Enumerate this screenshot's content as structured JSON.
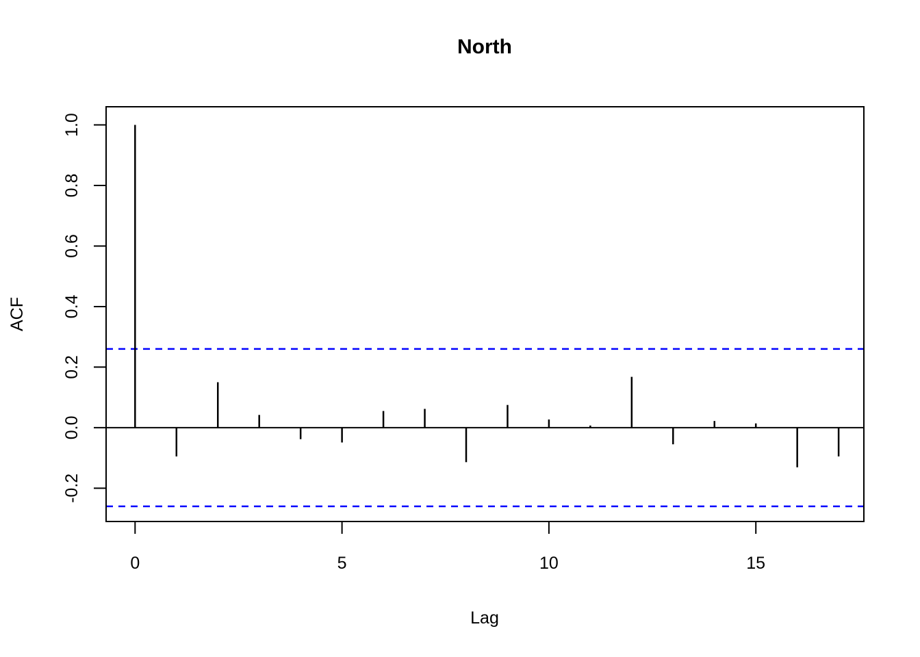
{
  "page": {
    "background": "#FFFFFF"
  },
  "chart_data": {
    "type": "bar",
    "variant": "acf-stick-plot",
    "title": "North",
    "xlabel": "Lag",
    "ylabel": "ACF",
    "categories": [
      0,
      1,
      2,
      3,
      4,
      5,
      6,
      7,
      8,
      9,
      10,
      11,
      12,
      13,
      14,
      15,
      16,
      17
    ],
    "values": [
      1.0,
      -0.095,
      0.15,
      0.042,
      -0.038,
      -0.049,
      0.055,
      0.062,
      -0.114,
      0.075,
      0.027,
      0.007,
      0.168,
      -0.055,
      0.022,
      0.014,
      -0.131,
      -0.095
    ],
    "confidence_interval": {
      "upper": 0.26,
      "lower": -0.26,
      "line_style": "dashed",
      "color": "#0000FF"
    },
    "xticks": {
      "values": [
        0,
        5,
        10,
        15
      ],
      "labels": [
        "0",
        "5",
        "10",
        "15"
      ]
    },
    "yticks": {
      "values": [
        1.0,
        0.8,
        0.6,
        0.4,
        0.2,
        0.0,
        -0.2
      ],
      "labels": [
        "1.0",
        "0.8",
        "0.6",
        "0.4",
        "0.2",
        "0.0",
        "-0.2"
      ]
    },
    "xlim": [
      -0.7,
      17.61
    ],
    "ylim": [
      -0.31,
      1.06
    ],
    "grid": false,
    "legend_position": "none",
    "bar_color": "#000000",
    "axis_color": "#000000",
    "text_color": "#000000",
    "background_color": "#FFFFFF"
  }
}
